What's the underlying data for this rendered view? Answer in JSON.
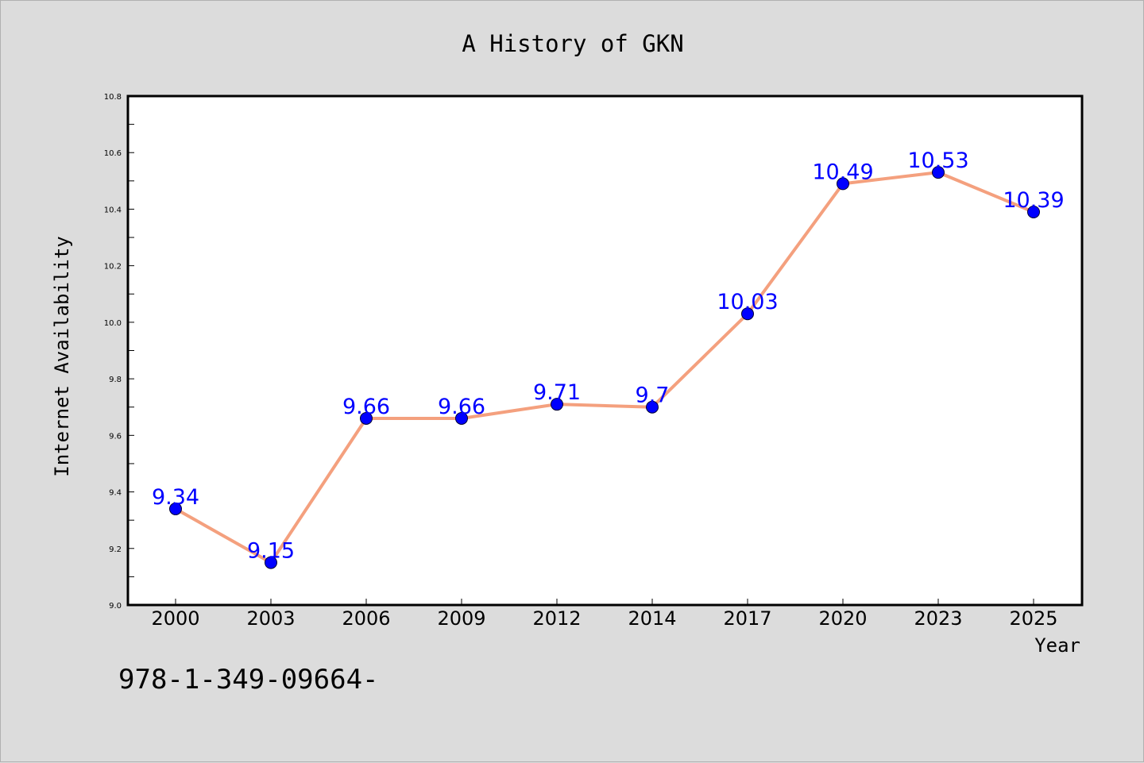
{
  "colors": {
    "background": "#dcdcdc",
    "plot_background": "#ffffff",
    "line": "#f4a07e",
    "marker": "#0000ff",
    "data_label": "#0000ff"
  },
  "footer_text": "978-1-349-09664-",
  "chart_data": {
    "type": "line",
    "title": "A History of GKN",
    "xlabel": "Year",
    "ylabel": "Internet Availability",
    "categories": [
      "2000",
      "2003",
      "2006",
      "2009",
      "2012",
      "2014",
      "2017",
      "2020",
      "2023",
      "2025"
    ],
    "series": [
      {
        "values": [
          9.34,
          9.15,
          9.66,
          9.66,
          9.71,
          9.7,
          10.03,
          10.49,
          10.53,
          10.39
        ],
        "labels": [
          "9.34",
          "9.15",
          "9.66",
          "9.66",
          "9.71",
          "9.7",
          "10.03",
          "10.49",
          "10.53",
          "10.39"
        ]
      }
    ],
    "ylim": [
      9.0,
      10.8
    ],
    "yticks": [
      "9.0",
      "9.2",
      "9.4",
      "9.6",
      "9.8",
      "10.0",
      "10.2",
      "10.4",
      "10.6",
      "10.8"
    ],
    "grid": false,
    "legend": "none"
  }
}
